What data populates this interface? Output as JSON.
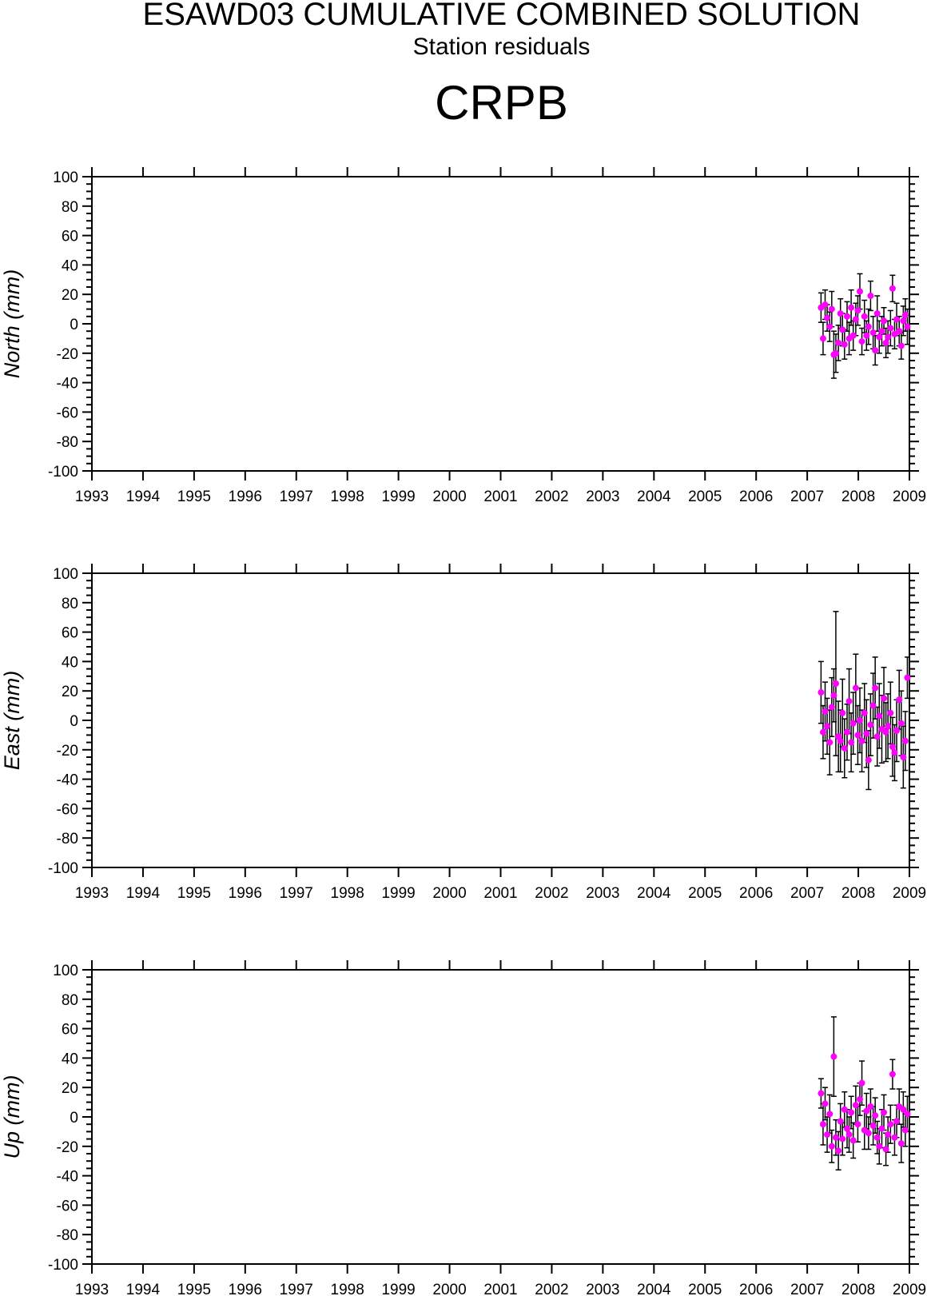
{
  "header": {
    "title": "ESAWD03 CUMULATIVE COMBINED SOLUTION",
    "subtitle": "Station residuals",
    "station": "CRPB"
  },
  "colors": {
    "marker": "#ff00ff",
    "errorbar": "#000000",
    "axis": "#000000"
  },
  "chart_data": [
    {
      "type": "scatter",
      "ylabel": "North (mm)",
      "xlim": [
        1993,
        2009
      ],
      "ylim": [
        -100,
        100
      ],
      "x_ticks": [
        "1993",
        "1994",
        "1995",
        "1996",
        "1997",
        "1998",
        "1999",
        "2000",
        "2001",
        "2002",
        "2003",
        "2004",
        "2005",
        "2006",
        "2007",
        "2008",
        "2009"
      ],
      "y_ticks": [
        "100",
        "80",
        "60",
        "40",
        "20",
        "0",
        "-20",
        "-40",
        "-60",
        "-80",
        "-100"
      ],
      "grid": false,
      "series": [
        {
          "x": [
            2007.27,
            2007.31,
            2007.35,
            2007.39,
            2007.44,
            2007.48,
            2007.52,
            2007.56,
            2007.61,
            2007.65,
            2007.69,
            2007.73,
            2007.78,
            2007.82,
            2007.86,
            2007.9,
            2007.95,
            2007.99,
            2008.03,
            2008.07,
            2008.12,
            2008.16,
            2008.2,
            2008.24,
            2008.29,
            2008.33,
            2008.37,
            2008.41,
            2008.46,
            2008.5,
            2008.54,
            2008.58,
            2008.63,
            2008.67,
            2008.71,
            2008.75,
            2008.8,
            2008.84,
            2008.88,
            2008.92,
            2008.96
          ],
          "y": [
            11,
            -10,
            13,
            4,
            -2,
            10,
            -21,
            -20,
            -13,
            7,
            -4,
            -14,
            5,
            -10,
            11,
            -8,
            3,
            9,
            22,
            -12,
            5,
            -8,
            -2,
            19,
            -6,
            -18,
            7,
            -9,
            -5,
            2,
            -13,
            -9,
            -3,
            24,
            -7,
            3,
            -5,
            -15,
            2,
            6,
            -2
          ],
          "err": [
            10,
            11,
            10,
            9,
            10,
            12,
            16,
            13,
            12,
            10,
            11,
            10,
            10,
            11,
            12,
            10,
            11,
            10,
            12,
            9,
            11,
            10,
            12,
            10,
            11,
            10,
            12,
            11,
            10,
            9,
            10,
            11,
            12,
            9,
            10,
            11,
            10,
            9,
            10,
            11,
            12
          ]
        }
      ]
    },
    {
      "type": "scatter",
      "ylabel": "East (mm)",
      "xlim": [
        1993,
        2009
      ],
      "ylim": [
        -100,
        100
      ],
      "x_ticks": [
        "1993",
        "1994",
        "1995",
        "1996",
        "1997",
        "1998",
        "1999",
        "2000",
        "2001",
        "2002",
        "2003",
        "2004",
        "2005",
        "2006",
        "2007",
        "2008",
        "2009"
      ],
      "y_ticks": [
        "100",
        "80",
        "60",
        "40",
        "20",
        "0",
        "-20",
        "-40",
        "-60",
        "-80",
        "-100"
      ],
      "grid": false,
      "series": [
        {
          "x": [
            2007.27,
            2007.31,
            2007.35,
            2007.39,
            2007.44,
            2007.48,
            2007.52,
            2007.56,
            2007.61,
            2007.65,
            2007.69,
            2007.73,
            2007.78,
            2007.82,
            2007.86,
            2007.9,
            2007.95,
            2007.99,
            2008.03,
            2008.07,
            2008.12,
            2008.16,
            2008.2,
            2008.24,
            2008.29,
            2008.33,
            2008.37,
            2008.41,
            2008.46,
            2008.5,
            2008.54,
            2008.58,
            2008.63,
            2008.67,
            2008.71,
            2008.75,
            2008.8,
            2008.84,
            2008.88,
            2008.92,
            2008.96
          ],
          "y": [
            19,
            -8,
            6,
            -4,
            -15,
            9,
            17,
            25,
            -11,
            -14,
            5,
            -19,
            -8,
            13,
            -15,
            -2,
            22,
            -10,
            0,
            -14,
            5,
            -9,
            -27,
            -3,
            10,
            22,
            -11,
            3,
            -6,
            15,
            -8,
            -4,
            5,
            -18,
            -22,
            -7,
            14,
            -2,
            -25,
            -14,
            29
          ],
          "err": [
            21,
            18,
            20,
            19,
            22,
            20,
            18,
            49,
            24,
            21,
            23,
            20,
            19,
            22,
            20,
            21,
            23,
            20,
            22,
            21,
            20,
            23,
            20,
            21,
            22,
            21,
            20,
            22,
            23,
            21,
            20,
            22,
            21,
            20,
            19,
            21,
            20,
            22,
            21,
            20,
            14
          ]
        }
      ]
    },
    {
      "type": "scatter",
      "ylabel": "Up (mm)",
      "xlim": [
        1993,
        2009
      ],
      "ylim": [
        -100,
        100
      ],
      "x_ticks": [
        "1993",
        "1994",
        "1995",
        "1996",
        "1997",
        "1998",
        "1999",
        "2000",
        "2001",
        "2002",
        "2003",
        "2004",
        "2005",
        "2006",
        "2007",
        "2008",
        "2009"
      ],
      "y_ticks": [
        "100",
        "80",
        "60",
        "40",
        "20",
        "0",
        "-20",
        "-40",
        "-60",
        "-80",
        "-100"
      ],
      "grid": false,
      "series": [
        {
          "x": [
            2007.27,
            2007.31,
            2007.35,
            2007.39,
            2007.44,
            2007.48,
            2007.52,
            2007.56,
            2007.61,
            2007.65,
            2007.69,
            2007.73,
            2007.78,
            2007.82,
            2007.86,
            2007.9,
            2007.95,
            2007.99,
            2008.03,
            2008.07,
            2008.12,
            2008.16,
            2008.2,
            2008.24,
            2008.29,
            2008.33,
            2008.37,
            2008.41,
            2008.46,
            2008.5,
            2008.54,
            2008.58,
            2008.63,
            2008.67,
            2008.71,
            2008.75,
            2008.8,
            2008.84,
            2008.88,
            2008.92,
            2008.96
          ],
          "y": [
            16,
            -5,
            9,
            -12,
            2,
            -20,
            41,
            -14,
            -23,
            -3,
            -15,
            5,
            -8,
            -12,
            3,
            -16,
            8,
            -5,
            12,
            23,
            -9,
            4,
            -11,
            7,
            -6,
            1,
            -14,
            -20,
            -8,
            3,
            -22,
            -12,
            -5,
            29,
            -14,
            -3,
            7,
            -18,
            5,
            -9,
            2
          ],
          "err": [
            10,
            14,
            11,
            12,
            13,
            11,
            27,
            12,
            13,
            12,
            11,
            12,
            13,
            12,
            11,
            12,
            13,
            12,
            11,
            15,
            13,
            12,
            11,
            12,
            13,
            12,
            11,
            12,
            13,
            12,
            11,
            12,
            13,
            10,
            12,
            11,
            12,
            13,
            12,
            11,
            12
          ]
        }
      ]
    }
  ]
}
